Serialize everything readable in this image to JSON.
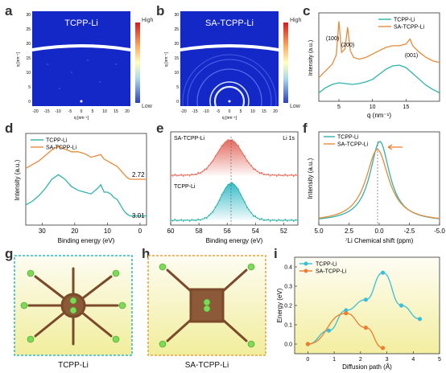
{
  "panel_letters": [
    "a",
    "b",
    "c",
    "d",
    "e",
    "f",
    "g",
    "h",
    "i"
  ],
  "giwaxs": {
    "a_title": "TCPP-Li",
    "b_title": "SA-TCPP-Li",
    "axis_q": "q [nm⁻¹]",
    "colorbar_high": "High",
    "colorbar_low": "Low",
    "x_ticks": [
      "-20",
      "-15",
      "-10",
      "-5",
      "0",
      "5",
      "10",
      "15",
      "20"
    ],
    "y_ticks": [
      "30",
      "25",
      "20",
      "15",
      "10",
      "5",
      "0"
    ]
  },
  "mol_captions": {
    "g": "TCPP-Li",
    "h": "SA-TCPP-Li"
  },
  "colors": {
    "tcpp": "#2fb3a9",
    "sa": "#e58a3b",
    "sa_xps": "#e26d5c",
    "cyan_marker": "#39c0d8",
    "orange_marker": "#ee7d2f",
    "giwaxs_bg": "#1428c8"
  },
  "chart_data": [
    {
      "id": "c",
      "type": "line",
      "xlabel": "q (nm⁻¹)",
      "ylabel": "Intensity (a.u.)",
      "xlim": [
        2,
        20
      ],
      "xticks": [
        5,
        10,
        15
      ],
      "annotations": [
        "(100)",
        "(200)",
        "(001)"
      ],
      "series": [
        {
          "name": "TCPP-Li",
          "x": [
            2,
            3,
            4,
            5,
            6,
            7,
            8,
            9,
            10,
            11,
            12,
            13,
            14,
            15,
            16,
            17,
            18,
            19,
            20
          ],
          "values": [
            0.1,
            0.16,
            0.2,
            0.22,
            0.21,
            0.2,
            0.21,
            0.23,
            0.26,
            0.32,
            0.38,
            0.42,
            0.43,
            0.4,
            0.33,
            0.26,
            0.19,
            0.14,
            0.1
          ]
        },
        {
          "name": "SA-TCPP-Li",
          "x": [
            2,
            3,
            4,
            4.6,
            5.0,
            5.4,
            5.9,
            6.3,
            6.7,
            7.2,
            8,
            9,
            10,
            11,
            12,
            13,
            14,
            15,
            15.6,
            16,
            17,
            18,
            19,
            20
          ],
          "values": [
            0.28,
            0.36,
            0.44,
            0.55,
            0.95,
            0.58,
            0.62,
            0.88,
            0.6,
            0.52,
            0.5,
            0.52,
            0.56,
            0.6,
            0.64,
            0.66,
            0.66,
            0.68,
            0.74,
            0.66,
            0.58,
            0.52,
            0.48,
            0.46
          ]
        }
      ]
    },
    {
      "id": "d",
      "type": "line",
      "xlabel": "Binding energy (eV)",
      "ylabel": "Intensity (a.u.)",
      "xlim": [
        35,
        -2
      ],
      "xticks": [
        30,
        20,
        10,
        0
      ],
      "annotations": [
        "2.72",
        "3.01"
      ],
      "series": [
        {
          "name": "TCPP-Li",
          "x": [
            35,
            33,
            31,
            29,
            27,
            25,
            23,
            21,
            19,
            17,
            15,
            13,
            12,
            11,
            10,
            9,
            8,
            7,
            6,
            5,
            4,
            3,
            2,
            0,
            -2
          ],
          "values": [
            0.22,
            0.26,
            0.32,
            0.4,
            0.5,
            0.55,
            0.5,
            0.42,
            0.38,
            0.36,
            0.34,
            0.4,
            0.44,
            0.36,
            0.36,
            0.34,
            0.3,
            0.28,
            0.22,
            0.16,
            0.12,
            0.1,
            0.1,
            0.1,
            0.1
          ]
        },
        {
          "name": "SA-TCPP-Li",
          "x": [
            35,
            33,
            31,
            29,
            27,
            25,
            23,
            21,
            19,
            17,
            15,
            13,
            12,
            11,
            10,
            9,
            8,
            7,
            6,
            5,
            4,
            3,
            2,
            0,
            -2
          ],
          "values": [
            0.62,
            0.66,
            0.7,
            0.76,
            0.82,
            0.86,
            0.83,
            0.8,
            0.8,
            0.78,
            0.74,
            0.76,
            0.77,
            0.72,
            0.7,
            0.68,
            0.66,
            0.64,
            0.6,
            0.56,
            0.52,
            0.5,
            0.5,
            0.5,
            0.5
          ]
        }
      ]
    },
    {
      "id": "e",
      "type": "scatter",
      "title": "Li 1s",
      "xlabel": "Binding energy (eV)",
      "xlim": [
        60,
        51
      ],
      "xticks": [
        60,
        58,
        56,
        54,
        52
      ],
      "series": [
        {
          "name": "SA-TCPP-Li",
          "center": 55.8,
          "width": 1.3
        },
        {
          "name": "TCPP-Li",
          "center": 55.7,
          "width": 1.1
        }
      ]
    },
    {
      "id": "f",
      "type": "line",
      "xlabel": "⁷Li Chemical shift (ppm)",
      "ylabel": "Intensity (a.u.)",
      "xlim": [
        5.0,
        -5.0
      ],
      "xticks": [
        5.0,
        2.5,
        0.0,
        -2.5,
        -5.0
      ],
      "series": [
        {
          "name": "TCPP-Li",
          "center": -0.05,
          "width": 1.0
        },
        {
          "name": "SA-TCPP-Li",
          "center": 0.15,
          "width": 1.15
        }
      ]
    },
    {
      "id": "i",
      "type": "line",
      "xlabel": "Diffusion path (Å)",
      "ylabel": "Energy (eV)",
      "xlim": [
        -0.5,
        5
      ],
      "ylim": [
        -0.05,
        0.45
      ],
      "xticks": [
        0,
        1,
        2,
        3,
        4,
        5
      ],
      "yticks": [
        0.0,
        0.1,
        0.2,
        0.3,
        0.4
      ],
      "series": [
        {
          "name": "TCPP-Li",
          "x": [
            0,
            0.8,
            1.45,
            2.2,
            2.85,
            3.55,
            4.25
          ],
          "values": [
            0.0,
            0.07,
            0.175,
            0.23,
            0.37,
            0.2,
            0.13
          ]
        },
        {
          "name": "SA-TCPP-Li",
          "x": [
            0,
            1.45,
            2.2,
            2.85
          ],
          "values": [
            0.0,
            0.16,
            0.085,
            -0.02
          ]
        }
      ]
    }
  ]
}
